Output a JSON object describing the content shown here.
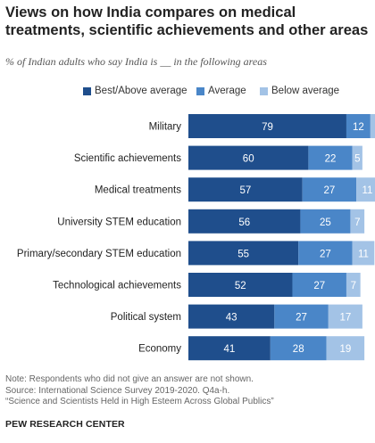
{
  "header": {
    "title": "Views on how India compares on medical treatments, scientific achievements and other areas",
    "subtitle": "% of Indian adults who say India is __ in the following areas"
  },
  "colors": {
    "best": "#1f4e8c",
    "average": "#4a86c8",
    "below": "#a3c3e6",
    "label_text": "#222222"
  },
  "chart_data": {
    "type": "bar",
    "orientation": "horizontal",
    "stacked": true,
    "categories": [
      "Military",
      "Scientific achievements",
      "Medical treatments",
      "University STEM education",
      "Primary/secondary STEM education",
      "Technological achievements",
      "Political system",
      "Economy"
    ],
    "series": [
      {
        "name": "Best/Above average",
        "values": [
          79,
          60,
          57,
          56,
          55,
          52,
          43,
          41
        ]
      },
      {
        "name": "Average",
        "values": [
          12,
          22,
          27,
          25,
          27,
          27,
          27,
          28
        ]
      },
      {
        "name": "Below average",
        "values": [
          3,
          5,
          11,
          7,
          11,
          7,
          17,
          19
        ]
      }
    ],
    "legend_position": "top",
    "grid": false,
    "xlim": [
      0,
      100
    ]
  },
  "footer": {
    "note": "Note: Respondents who did not give an answer are not shown.",
    "source": "Source: International Science Survey 2019-2020. Q4a-h.",
    "report": "“Science and Scientists Held in High Esteem Across Global Publics”",
    "organization": "PEW RESEARCH CENTER"
  }
}
